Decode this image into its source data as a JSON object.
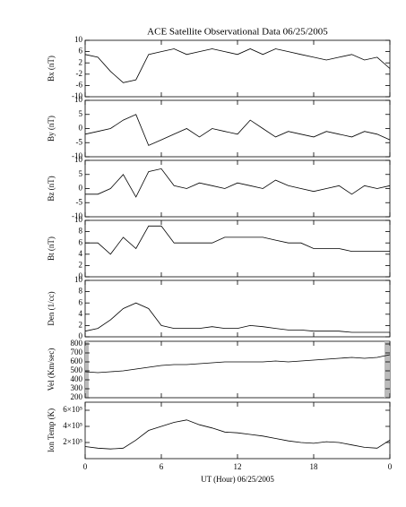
{
  "chart_data": {
    "type": "line",
    "title": "ACE Satellite Observational Data   06/25/2005",
    "x_label": "UT (Hour)   06/25/2005",
    "x": [
      0,
      1,
      2,
      3,
      4,
      5,
      6,
      7,
      8,
      9,
      10,
      11,
      12,
      13,
      14,
      15,
      16,
      17,
      18,
      19,
      20,
      21,
      22,
      23,
      24
    ],
    "xlim": [
      0,
      24
    ],
    "xticks": [
      0,
      6,
      12,
      18,
      {
        "value": 24,
        "label": "0"
      }
    ],
    "panels": [
      {
        "y_label": "Bx (nT)",
        "color": "#000000",
        "ylim": [
          -10,
          10
        ],
        "yticks": [
          -10,
          -6,
          -2,
          2,
          6,
          10
        ],
        "values": [
          5,
          4,
          -1,
          -5,
          -4,
          5,
          6,
          7,
          5,
          6,
          7,
          6,
          5,
          7,
          5,
          7,
          6,
          5,
          4,
          3,
          4,
          5,
          3,
          4,
          0
        ]
      },
      {
        "y_label": "By (nT)",
        "color": "#000000",
        "ylim": [
          -10,
          10
        ],
        "yticks": [
          -10,
          -5,
          0,
          5,
          10
        ],
        "values": [
          -2,
          -1,
          0,
          3,
          5,
          -6,
          -4,
          -2,
          0,
          -3,
          0,
          -1,
          -2,
          3,
          0,
          -3,
          -1,
          -2,
          -3,
          -1,
          -2,
          -3,
          -1,
          -2,
          -4
        ]
      },
      {
        "y_label": "Bz (nT)",
        "color": "#000000",
        "ylim": [
          -10,
          10
        ],
        "yticks": [
          -10,
          -5,
          0,
          5,
          10
        ],
        "values": [
          -2,
          -2,
          0,
          5,
          -3,
          6,
          7,
          1,
          0,
          2,
          1,
          0,
          2,
          1,
          0,
          3,
          1,
          0,
          -1,
          0,
          1,
          -2,
          1,
          0,
          1
        ]
      },
      {
        "y_label": "Bt (nT)",
        "color": "#000000",
        "ylim": [
          0,
          10
        ],
        "yticks": [
          0,
          2,
          4,
          6,
          8,
          10
        ],
        "values": [
          6,
          6,
          4,
          7,
          5,
          9,
          9,
          6,
          6,
          6,
          6,
          7,
          7,
          7,
          7,
          6.5,
          6,
          6,
          5,
          5,
          5,
          4.5,
          4.5,
          4.5,
          4.5
        ]
      },
      {
        "y_label": "Den (1/cc)",
        "color": "#000000",
        "ylim": [
          0,
          10
        ],
        "yticks": [
          0,
          2,
          4,
          6,
          8,
          10
        ],
        "values": [
          1,
          1.5,
          3,
          5,
          6,
          5,
          2,
          1.5,
          1.5,
          1.5,
          1.8,
          1.5,
          1.5,
          2,
          1.8,
          1.5,
          1.2,
          1.2,
          1,
          1,
          1,
          0.8,
          0.8,
          0.8,
          0.8
        ]
      },
      {
        "y_label": "Vel (Km/sec)",
        "color": "#000000",
        "ylim": [
          200,
          830
        ],
        "yticks": [
          200,
          300,
          400,
          500,
          600,
          700,
          800
        ],
        "values": [
          490,
          480,
          490,
          500,
          520,
          540,
          560,
          570,
          570,
          580,
          590,
          600,
          600,
          600,
          600,
          610,
          600,
          610,
          620,
          630,
          640,
          650,
          640,
          650,
          680
        ]
      },
      {
        "y_label": "Ion Temp (K)",
        "color": "#000000",
        "ylim": [
          0,
          700000
        ],
        "yticks": [
          {
            "value": 200000,
            "label": "2×10⁵"
          },
          {
            "value": 400000,
            "label": "4×10⁵"
          },
          {
            "value": 600000,
            "label": "6×10⁵"
          }
        ],
        "values": [
          150000,
          130000,
          120000,
          130000,
          230000,
          350000,
          400000,
          450000,
          480000,
          420000,
          380000,
          330000,
          320000,
          300000,
          280000,
          250000,
          220000,
          200000,
          190000,
          210000,
          200000,
          170000,
          140000,
          130000,
          230000
        ]
      }
    ]
  }
}
